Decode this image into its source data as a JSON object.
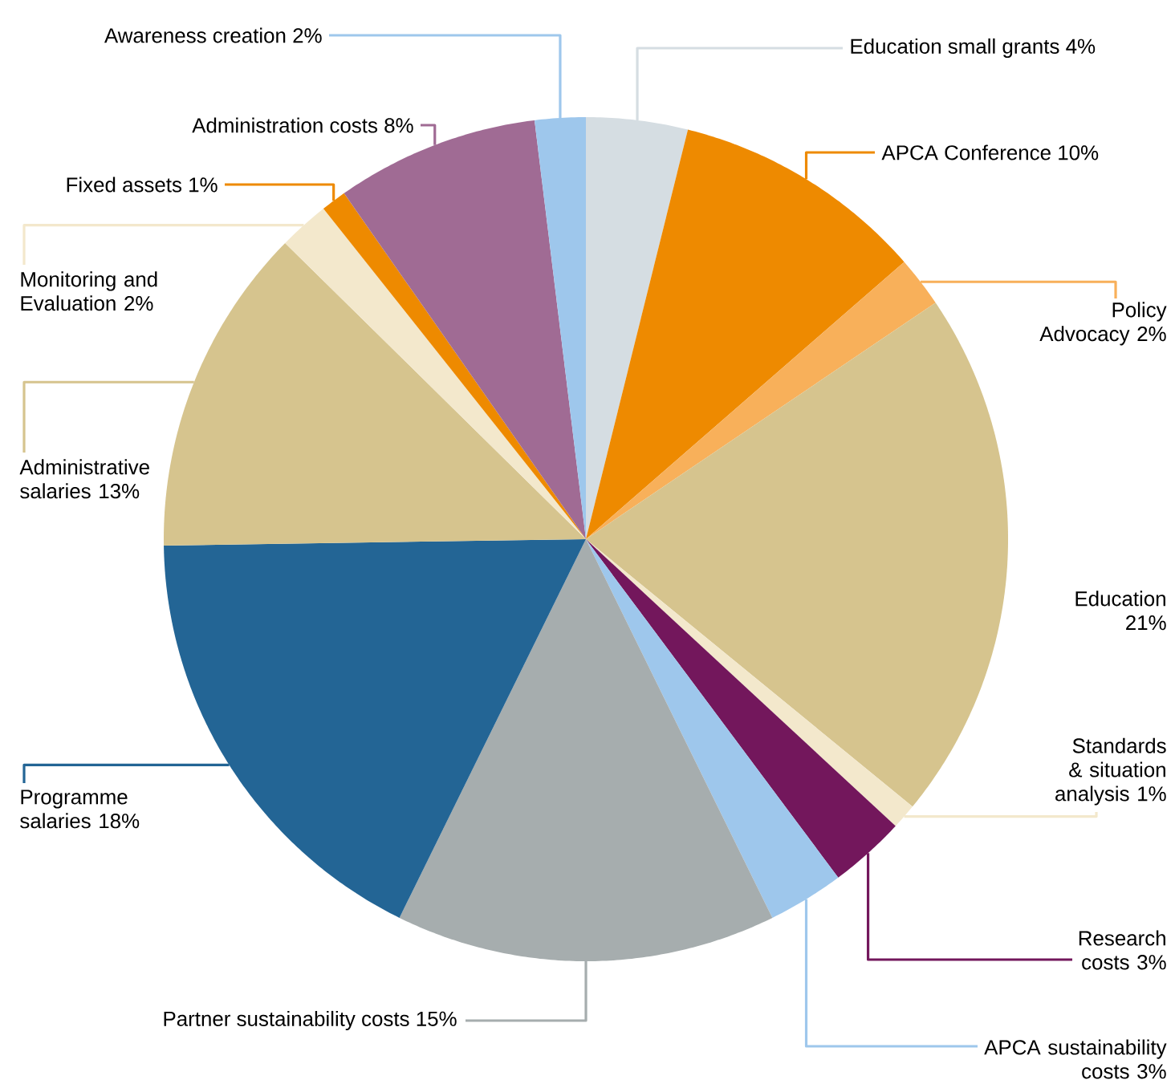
{
  "chart_data": {
    "type": "pie",
    "categories": [
      "Education small grants",
      "APCA Conference",
      "Policy Advocacy",
      "Education",
      "Standards & situation analysis",
      "Research costs",
      "APCA sustainability costs",
      "Partner sustainability costs",
      "Programme salaries",
      "Administrative salaries",
      "Monitoring and Evaluation",
      "Fixed assets",
      "Administration costs",
      "Awareness creation"
    ],
    "values": [
      4,
      10,
      2,
      21,
      1,
      3,
      3,
      15,
      18,
      13,
      2,
      1,
      8,
      2
    ],
    "value_labels": [
      "4%",
      "10%",
      "2%",
      "21%",
      "1%",
      "3%",
      "3%",
      "15%",
      "18%",
      "13%",
      "2%",
      "1%",
      "8%",
      "2%"
    ],
    "colors": [
      "#d5dde2",
      "#ee8a00",
      "#f8b05a",
      "#d6c48e",
      "#f3e8cc",
      "#73175c",
      "#9ec7ec",
      "#a6adae",
      "#236595",
      "#d6c48e",
      "#f3e8cc",
      "#ee8a00",
      "#a06b94",
      "#9ec7ec"
    ]
  }
}
